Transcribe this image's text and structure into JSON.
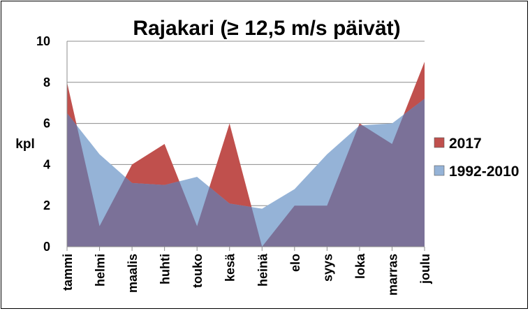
{
  "chart_data": {
    "type": "area",
    "title": "Rajakari (≥ 12,5 m/s päivät)",
    "ylabel": "kpl",
    "xlabel": "",
    "ylim": [
      0,
      10
    ],
    "yticks": [
      0,
      2,
      4,
      6,
      8,
      10
    ],
    "categories": [
      "tammi",
      "helmi",
      "maalis",
      "huhti",
      "touko",
      "kesä",
      "heinä",
      "elo",
      "syys",
      "loka",
      "marras",
      "joulu"
    ],
    "grid": true,
    "legend": "right",
    "series": [
      {
        "name": "2017",
        "color": "#c0504d",
        "values": [
          8,
          1,
          4,
          5,
          1,
          6,
          0,
          2,
          2,
          6,
          5,
          9
        ]
      },
      {
        "name": "1992-2010",
        "color": "#95b3d7",
        "values": [
          6.5,
          4.5,
          3.1,
          3.0,
          3.4,
          2.1,
          1.85,
          2.8,
          4.5,
          5.9,
          6.0,
          7.2
        ]
      }
    ],
    "overlap_color": "#7b7198"
  }
}
